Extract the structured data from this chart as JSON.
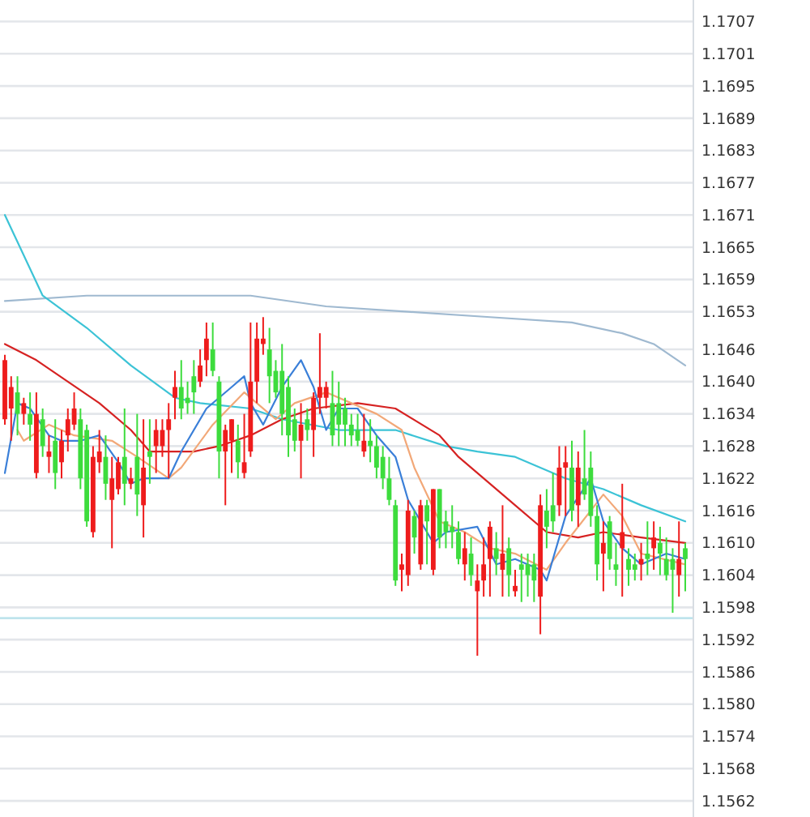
{
  "chart_data": {
    "type": "candlestick",
    "categories": [
      null,
      null,
      null,
      null,
      null,
      null,
      null,
      null,
      null,
      null,
      null,
      null,
      null,
      null,
      null,
      null,
      null,
      null,
      null,
      null,
      null,
      null,
      null,
      null,
      null,
      null,
      null,
      null,
      null,
      null,
      null,
      null,
      null,
      null,
      null,
      null,
      null,
      null,
      null,
      null,
      null,
      null,
      null,
      null,
      null,
      null,
      null,
      null,
      null,
      null,
      null,
      null,
      null,
      null,
      null,
      null,
      null,
      null,
      null,
      null,
      null,
      null,
      null,
      null,
      null,
      null,
      null,
      null,
      null,
      null,
      null,
      null,
      null,
      null,
      null,
      null,
      null,
      null,
      null,
      null,
      null,
      null,
      null,
      null,
      null,
      null,
      null,
      null,
      null,
      null,
      null,
      null,
      null,
      null,
      null,
      null,
      null,
      null,
      null,
      null,
      null,
      null,
      null,
      null,
      null,
      null,
      null,
      null,
      null
    ],
    "ohlc": [
      [
        1.1633,
        1.1645,
        1.1632,
        1.1644
      ],
      [
        1.1635,
        1.1641,
        1.1629,
        1.1639
      ],
      [
        1.1638,
        1.1641,
        1.163,
        1.1634
      ],
      [
        1.1634,
        1.1637,
        1.1632,
        1.1636
      ],
      [
        1.1634,
        1.1638,
        1.1629,
        1.1632
      ],
      [
        1.1623,
        1.1638,
        1.1622,
        1.1634
      ],
      [
        1.1633,
        1.1635,
        1.1626,
        1.1628
      ],
      [
        1.1626,
        1.163,
        1.1623,
        1.1627
      ],
      [
        1.1629,
        1.1633,
        1.162,
        1.1623
      ],
      [
        1.1625,
        1.1631,
        1.1622,
        1.1629
      ],
      [
        1.163,
        1.1635,
        1.1627,
        1.1633
      ],
      [
        1.1632,
        1.1638,
        1.1631,
        1.1635
      ],
      [
        1.1633,
        1.1635,
        1.162,
        1.1622
      ],
      [
        1.1631,
        1.1632,
        1.1613,
        1.1614
      ],
      [
        1.1612,
        1.1628,
        1.1611,
        1.1626
      ],
      [
        1.1625,
        1.1631,
        1.1623,
        1.1627
      ],
      [
        1.1626,
        1.163,
        1.1618,
        1.1621
      ],
      [
        1.1618,
        1.1626,
        1.1609,
        1.1622
      ],
      [
        1.162,
        1.1626,
        1.1619,
        1.1625
      ],
      [
        1.1626,
        1.1635,
        1.1617,
        1.1621
      ],
      [
        1.1621,
        1.1624,
        1.162,
        1.1622
      ],
      [
        1.1626,
        1.1634,
        1.1615,
        1.1619
      ],
      [
        1.1617,
        1.1633,
        1.1611,
        1.1624
      ],
      [
        1.1627,
        1.1633,
        1.1621,
        1.1626
      ],
      [
        1.1628,
        1.1633,
        1.1623,
        1.1631
      ],
      [
        1.1628,
        1.1633,
        1.1626,
        1.1631
      ],
      [
        1.1631,
        1.1636,
        1.1622,
        1.1633
      ],
      [
        1.1637,
        1.1642,
        1.1633,
        1.1639
      ],
      [
        1.1639,
        1.1644,
        1.1633,
        1.1635
      ],
      [
        1.1637,
        1.164,
        1.1634,
        1.1636
      ],
      [
        1.1641,
        1.1644,
        1.1634,
        1.1638
      ],
      [
        1.164,
        1.1646,
        1.1639,
        1.1643
      ],
      [
        1.1644,
        1.1651,
        1.1641,
        1.1648
      ],
      [
        1.1646,
        1.1651,
        1.1641,
        1.1642
      ],
      [
        1.164,
        1.1641,
        1.1622,
        1.1627
      ],
      [
        1.1627,
        1.1632,
        1.1617,
        1.1631
      ],
      [
        1.1629,
        1.1633,
        1.1623,
        1.1633
      ],
      [
        1.1629,
        1.1632,
        1.1622,
        1.1625
      ],
      [
        1.1623,
        1.1634,
        1.1622,
        1.1625
      ],
      [
        1.1627,
        1.1651,
        1.1626,
        1.164
      ],
      [
        1.164,
        1.1651,
        1.1636,
        1.1648
      ],
      [
        1.1647,
        1.1652,
        1.1645,
        1.1648
      ],
      [
        1.1646,
        1.165,
        1.1636,
        1.1641
      ],
      [
        1.1642,
        1.1644,
        1.1637,
        1.1638
      ],
      [
        1.1642,
        1.1647,
        1.163,
        1.1634
      ],
      [
        1.1639,
        1.1641,
        1.1626,
        1.163
      ],
      [
        1.1633,
        1.1635,
        1.1627,
        1.1629
      ],
      [
        1.1629,
        1.1636,
        1.1622,
        1.1632
      ],
      [
        1.1633,
        1.1635,
        1.1629,
        1.1631
      ],
      [
        1.1631,
        1.1638,
        1.1626,
        1.1637
      ],
      [
        1.1637,
        1.1649,
        1.1634,
        1.1639
      ],
      [
        1.1637,
        1.164,
        1.1635,
        1.1639
      ],
      [
        1.1636,
        1.1642,
        1.1628,
        1.163
      ],
      [
        1.1636,
        1.164,
        1.1628,
        1.1632
      ],
      [
        1.1635,
        1.1637,
        1.1628,
        1.1632
      ],
      [
        1.1632,
        1.1634,
        1.1628,
        1.163
      ],
      [
        1.1631,
        1.1634,
        1.1628,
        1.1629
      ],
      [
        1.1627,
        1.1634,
        1.1626,
        1.1629
      ],
      [
        1.1629,
        1.1633,
        1.1625,
        1.1628
      ],
      [
        1.1628,
        1.163,
        1.1622,
        1.1624
      ],
      [
        1.1626,
        1.1628,
        1.162,
        1.1622
      ],
      [
        1.1622,
        1.1626,
        1.1617,
        1.1618
      ],
      [
        1.1617,
        1.1618,
        1.1602,
        1.1603
      ],
      [
        1.1605,
        1.1608,
        1.1601,
        1.1606
      ],
      [
        1.1604,
        1.1618,
        1.1602,
        1.1616
      ],
      [
        1.1615,
        1.1616,
        1.1608,
        1.1611
      ],
      [
        1.1606,
        1.1618,
        1.1605,
        1.1617
      ],
      [
        1.1617,
        1.1618,
        1.1606,
        1.1614
      ],
      [
        1.1605,
        1.162,
        1.1604,
        1.162
      ],
      [
        1.162,
        1.162,
        1.1609,
        1.1611
      ],
      [
        1.1614,
        1.1616,
        1.1609,
        1.1612
      ],
      [
        1.1613,
        1.1617,
        1.1609,
        1.1612
      ],
      [
        1.1612,
        1.1614,
        1.1606,
        1.1607
      ],
      [
        1.1606,
        1.1612,
        1.1603,
        1.1609
      ],
      [
        1.1608,
        1.1611,
        1.1602,
        1.1604
      ],
      [
        1.1601,
        1.1606,
        1.1589,
        1.1603
      ],
      [
        1.1603,
        1.1611,
        1.16,
        1.1606
      ],
      [
        1.1607,
        1.1614,
        1.16,
        1.1613
      ],
      [
        1.1609,
        1.1612,
        1.1604,
        1.1607
      ],
      [
        1.1605,
        1.1617,
        1.16,
        1.1608
      ],
      [
        1.1609,
        1.1611,
        1.16,
        1.1604
      ],
      [
        1.1601,
        1.1605,
        1.16,
        1.1602
      ],
      [
        1.1606,
        1.1608,
        1.1599,
        1.1605
      ],
      [
        1.1606,
        1.1608,
        1.16,
        1.1604
      ],
      [
        1.1606,
        1.1608,
        1.1599,
        1.1603
      ],
      [
        1.16,
        1.1619,
        1.1593,
        1.1617
      ],
      [
        1.1616,
        1.162,
        1.1609,
        1.1613
      ],
      [
        1.1617,
        1.1623,
        1.1612,
        1.1614
      ],
      [
        1.1617,
        1.1628,
        1.1615,
        1.1624
      ],
      [
        1.1624,
        1.1628,
        1.1615,
        1.1625
      ],
      [
        1.1624,
        1.1629,
        1.1614,
        1.1616
      ],
      [
        1.1617,
        1.1627,
        1.1613,
        1.1624
      ],
      [
        1.1622,
        1.1631,
        1.1618,
        1.1619
      ],
      [
        1.1624,
        1.1627,
        1.1613,
        1.1615
      ],
      [
        1.1615,
        1.1617,
        1.1603,
        1.1606
      ],
      [
        1.1608,
        1.1614,
        1.1601,
        1.161
      ],
      [
        1.1614,
        1.1615,
        1.1605,
        1.1607
      ],
      [
        1.1606,
        1.161,
        1.1602,
        1.1605
      ],
      [
        1.1609,
        1.1621,
        1.16,
        1.1612
      ],
      [
        1.1607,
        1.1609,
        1.1602,
        1.1605
      ],
      [
        1.1606,
        1.1608,
        1.1603,
        1.1605
      ],
      [
        1.1606,
        1.161,
        1.1603,
        1.1607
      ],
      [
        1.1608,
        1.1614,
        1.1604,
        1.1607
      ],
      [
        1.1609,
        1.1614,
        1.1605,
        1.1611
      ],
      [
        1.161,
        1.1613,
        1.1604,
        1.1608
      ],
      [
        1.1607,
        1.1611,
        1.1603,
        1.1604
      ],
      [
        1.1607,
        1.1609,
        1.1597,
        1.1605
      ],
      [
        1.1604,
        1.1614,
        1.16,
        1.1607
      ],
      [
        1.1609,
        1.161,
        1.1601,
        1.1607
      ]
    ],
    "colors": [
      "#ee1c1c",
      "#ee1c1c",
      "#3ddc3d",
      "#ee1c1c",
      "#3ddc3d",
      "#ee1c1c",
      "#3ddc3d",
      "#ee1c1c",
      "#3ddc3d",
      "#ee1c1c",
      "#ee1c1c",
      "#ee1c1c",
      "#3ddc3d",
      "#3ddc3d",
      "#ee1c1c",
      "#ee1c1c",
      "#3ddc3d",
      "#ee1c1c",
      "#ee1c1c",
      "#3ddc3d",
      "#ee1c1c",
      "#3ddc3d",
      "#ee1c1c",
      "#3ddc3d",
      "#ee1c1c",
      "#ee1c1c",
      "#ee1c1c",
      "#ee1c1c",
      "#3ddc3d",
      "#3ddc3d",
      "#3ddc3d",
      "#ee1c1c",
      "#ee1c1c",
      "#3ddc3d",
      "#3ddc3d",
      "#ee1c1c",
      "#ee1c1c",
      "#3ddc3d",
      "#ee1c1c",
      "#ee1c1c",
      "#ee1c1c",
      "#ee1c1c",
      "#3ddc3d",
      "#3ddc3d",
      "#3ddc3d",
      "#3ddc3d",
      "#3ddc3d",
      "#ee1c1c",
      "#3ddc3d",
      "#ee1c1c",
      "#ee1c1c",
      "#ee1c1c",
      "#3ddc3d",
      "#3ddc3d",
      "#3ddc3d",
      "#3ddc3d",
      "#3ddc3d",
      "#ee1c1c",
      "#3ddc3d",
      "#3ddc3d",
      "#3ddc3d",
      "#3ddc3d",
      "#3ddc3d",
      "#ee1c1c",
      "#ee1c1c",
      "#3ddc3d",
      "#ee1c1c",
      "#3ddc3d",
      "#ee1c1c",
      "#3ddc3d",
      "#3ddc3d",
      "#3ddc3d",
      "#3ddc3d",
      "#ee1c1c",
      "#3ddc3d",
      "#ee1c1c",
      "#ee1c1c",
      "#ee1c1c",
      "#3ddc3d",
      "#ee1c1c",
      "#3ddc3d",
      "#ee1c1c",
      "#3ddc3d",
      "#3ddc3d",
      "#3ddc3d",
      "#ee1c1c",
      "#3ddc3d",
      "#3ddc3d",
      "#ee1c1c",
      "#ee1c1c",
      "#3ddc3d",
      "#ee1c1c",
      "#3ddc3d",
      "#3ddc3d",
      "#3ddc3d",
      "#ee1c1c",
      "#3ddc3d",
      "#3ddc3d",
      "#ee1c1c",
      "#3ddc3d",
      "#3ddc3d",
      "#ee1c1c",
      "#3ddc3d",
      "#ee1c1c",
      "#3ddc3d",
      "#3ddc3d",
      "#3ddc3d",
      "#ee1c1c",
      "#3ddc3d"
    ],
    "series": [
      {
        "type": "line",
        "color": "#9fb9d0",
        "values": [
          1.1655,
          null,
          null,
          null,
          null,
          null,
          null,
          null,
          null,
          null,
          null,
          null,
          null,
          1.1656,
          null,
          null,
          null,
          null,
          null,
          null,
          null,
          null,
          null,
          null,
          null,
          null,
          1.1656,
          null,
          null,
          null,
          null,
          null,
          null,
          null,
          null,
          null,
          null,
          null,
          null,
          1.1656,
          null,
          null,
          null,
          null,
          null,
          null,
          null,
          null,
          null,
          null,
          null,
          1.1654,
          null,
          null,
          null,
          null,
          null,
          null,
          null,
          null,
          null,
          null,
          null,
          null,
          1.1653,
          null,
          null,
          null,
          null,
          null,
          null,
          null,
          null,
          null,
          null,
          null,
          null,
          1.1652,
          null,
          null,
          null,
          null,
          null,
          null,
          null,
          null,
          null,
          null,
          null,
          null,
          1.1651,
          null,
          null,
          null,
          null,
          null,
          null,
          null,
          1.1649,
          null,
          null,
          null,
          null,
          1.1647,
          null,
          null,
          null,
          null,
          1.1643
        ]
      },
      {
        "type": "line",
        "color": "#3cc3d6",
        "values": [
          1.1671,
          null,
          null,
          null,
          null,
          null,
          1.1656,
          null,
          null,
          null,
          null,
          null,
          null,
          1.165,
          null,
          null,
          null,
          null,
          null,
          null,
          1.1643,
          null,
          null,
          null,
          null,
          null,
          null,
          1.1637,
          null,
          null,
          null,
          1.1636,
          null,
          null,
          null,
          null,
          null,
          null,
          null,
          1.1635,
          null,
          null,
          null,
          null,
          1.1633,
          null,
          null,
          null,
          null,
          null,
          null,
          null,
          null,
          1.1631,
          null,
          null,
          null,
          null,
          null,
          null,
          null,
          null,
          1.1631,
          null,
          null,
          null,
          null,
          null,
          null,
          null,
          1.1628,
          null,
          null,
          null,
          null,
          1.1627,
          null,
          null,
          null,
          null,
          null,
          1.1626,
          null,
          null,
          null,
          null,
          null,
          null,
          null,
          1.1622,
          null,
          null,
          null,
          null,
          null,
          1.162,
          null,
          null,
          null,
          null,
          null,
          1.1617,
          null,
          null,
          null,
          null,
          null,
          null,
          1.1614
        ]
      },
      {
        "type": "line",
        "color": "#d62222",
        "values": [
          1.1647,
          null,
          null,
          null,
          null,
          1.1644,
          null,
          null,
          null,
          null,
          1.164,
          null,
          null,
          null,
          null,
          1.1636,
          null,
          null,
          null,
          null,
          1.1631,
          null,
          null,
          1.1627,
          null,
          null,
          null,
          null,
          null,
          null,
          1.1627,
          null,
          null,
          null,
          1.1628,
          null,
          null,
          null,
          null,
          1.163,
          null,
          null,
          null,
          null,
          1.1633,
          null,
          null,
          null,
          null,
          1.1635,
          null,
          null,
          null,
          null,
          null,
          null,
          1.1636,
          null,
          null,
          null,
          null,
          null,
          1.1635,
          null,
          null,
          null,
          null,
          null,
          null,
          1.163,
          null,
          null,
          1.1626,
          null,
          null,
          null,
          null,
          null,
          null,
          null,
          null,
          1.1617,
          null,
          null,
          null,
          null,
          1.1612,
          null,
          null,
          null,
          null,
          1.1611,
          null,
          null,
          null,
          1.1612,
          null,
          null,
          null,
          null,
          null,
          1.1611,
          null,
          null,
          null,
          null,
          null,
          null,
          1.161
        ]
      },
      {
        "type": "line",
        "color": "#f2a878",
        "values": [
          null,
          null,
          1.1631,
          1.1629,
          null,
          null,
          null,
          1.1632,
          null,
          null,
          null,
          1.163,
          null,
          null,
          null,
          null,
          null,
          1.1629,
          null,
          null,
          null,
          1.1626,
          null,
          null,
          null,
          null,
          1.1622,
          null,
          1.1624,
          null,
          null,
          null,
          null,
          1.1632,
          null,
          null,
          null,
          null,
          1.1638,
          null,
          null,
          null,
          null,
          1.1633,
          null,
          null,
          1.1636,
          null,
          null,
          null,
          null,
          1.1638,
          null,
          null,
          null,
          1.1636,
          null,
          null,
          null,
          1.1634,
          null,
          null,
          null,
          1.1631,
          null,
          1.1624,
          null,
          null,
          null,
          1.1614,
          null,
          null,
          null,
          1.1612,
          null,
          null,
          null,
          1.1609,
          null,
          null,
          null,
          1.1608,
          null,
          null,
          null,
          null,
          1.1605,
          null,
          null,
          1.161,
          null,
          null,
          null,
          null,
          null,
          1.1619,
          null,
          null,
          1.1615,
          null,
          null,
          1.1608,
          null,
          null,
          null,
          null,
          null,
          null,
          1.1606
        ]
      },
      {
        "type": "line",
        "color": "#3a7fd8",
        "values": [
          1.1623,
          null,
          1.1636,
          null,
          1.1635,
          null,
          null,
          1.163,
          null,
          1.1629,
          null,
          null,
          1.1629,
          null,
          null,
          1.163,
          null,
          null,
          1.1625,
          null,
          1.1621,
          null,
          1.1622,
          null,
          null,
          null,
          1.1622,
          null,
          1.1627,
          null,
          null,
          null,
          1.1635,
          null,
          null,
          null,
          1.1639,
          null,
          1.1641,
          1.1636,
          null,
          1.1632,
          null,
          null,
          1.1639,
          null,
          null,
          1.1644,
          null,
          1.1639,
          null,
          1.1631,
          null,
          1.1635,
          null,
          null,
          1.1635,
          null,
          null,
          1.163,
          null,
          null,
          1.1626,
          null,
          1.1618,
          null,
          null,
          null,
          1.161,
          null,
          1.1612,
          null,
          null,
          null,
          null,
          1.1613,
          null,
          null,
          1.1606,
          null,
          null,
          1.1607,
          null,
          null,
          null,
          1.1605,
          1.1603,
          null,
          null,
          1.1615,
          null,
          null,
          null,
          1.1622,
          null,
          1.1614,
          null,
          null,
          1.1609,
          null,
          null,
          1.1606,
          null,
          null,
          null,
          1.1608,
          null,
          null,
          1.1607
        ]
      }
    ],
    "ylim": [
      1.1559,
      1.1711
    ],
    "yticks": [
      1.1707,
      1.1701,
      1.1695,
      1.1689,
      1.1683,
      1.1677,
      1.1671,
      1.1665,
      1.1659,
      1.1653,
      1.1646,
      {
        "value": 1.164,
        "label": "1.1640"
      },
      1.1634,
      1.1628,
      1.1622,
      1.1616,
      {
        "value": 1.161,
        "label": "1.1610"
      },
      1.1604,
      1.1598,
      1.1592,
      1.1586,
      {
        "value": 1.158,
        "label": "1.1580"
      },
      1.1574,
      1.1568,
      1.1562
    ],
    "grid": "y",
    "ref_lines": [
      {
        "axis": "y",
        "value": 1.1596,
        "color": "#bfe4ec"
      }
    ]
  }
}
